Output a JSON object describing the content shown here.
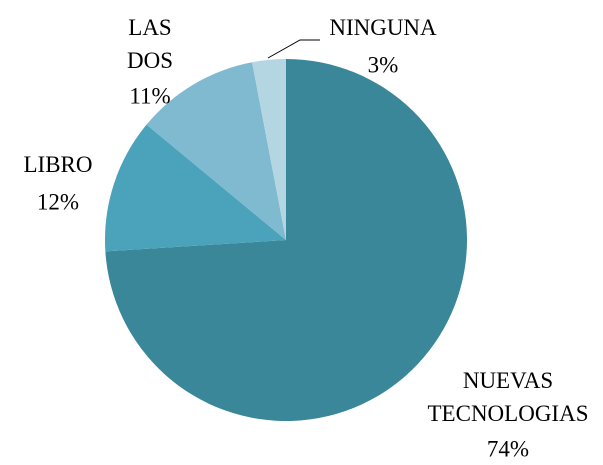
{
  "chart_data": {
    "type": "pie",
    "categories": [
      "NUEVAS TECNOLOGIAS",
      "LIBRO",
      "LAS DOS",
      "NINGUNA"
    ],
    "values": [
      74,
      12,
      11,
      3
    ],
    "value_labels": [
      "74%",
      "12%",
      "11%",
      "3%"
    ],
    "colors": [
      "#3a8799",
      "#4aa3bb",
      "#7fbad0",
      "#b4d6e2"
    ]
  }
}
